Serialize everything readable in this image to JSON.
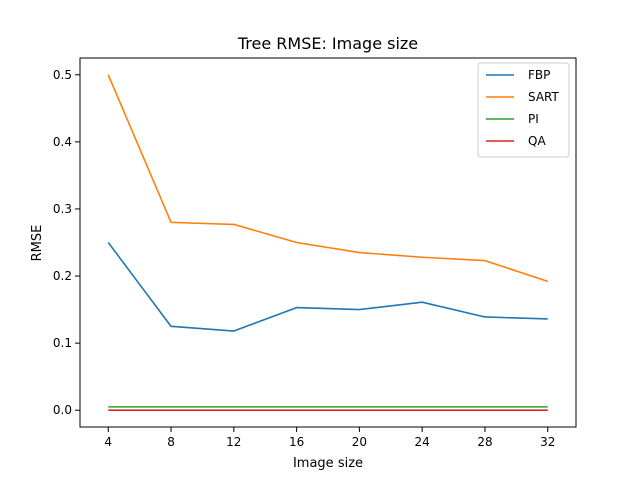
{
  "chart_data": {
    "type": "line",
    "title": "Tree RMSE: Image size",
    "xlabel": "Image size",
    "ylabel": "RMSE",
    "x": [
      4,
      8,
      12,
      16,
      20,
      24,
      28,
      32
    ],
    "xticks": [
      "4",
      "8",
      "12",
      "16",
      "20",
      "24",
      "28",
      "32"
    ],
    "yticks": [
      "0.0",
      "0.1",
      "0.2",
      "0.3",
      "0.4",
      "0.5"
    ],
    "xlim": [
      2.2,
      33.8
    ],
    "ylim": [
      -0.025,
      0.525
    ],
    "grid": false,
    "legend_position": "top-right",
    "series": [
      {
        "name": "FBP",
        "color": "#1f77b4",
        "values": [
          0.25,
          0.125,
          0.118,
          0.153,
          0.15,
          0.161,
          0.139,
          0.136
        ]
      },
      {
        "name": "SART",
        "color": "#ff7f0e",
        "values": [
          0.5,
          0.28,
          0.277,
          0.25,
          0.235,
          0.228,
          0.223,
          0.192
        ]
      },
      {
        "name": "PI",
        "color": "#2ca02c",
        "values": [
          0.005,
          0.005,
          0.005,
          0.005,
          0.005,
          0.005,
          0.005,
          0.005
        ]
      },
      {
        "name": "QA",
        "color": "#d62728",
        "values": [
          0.0,
          0.0,
          0.0,
          0.0,
          0.0,
          0.0,
          0.0,
          0.0
        ]
      }
    ]
  }
}
